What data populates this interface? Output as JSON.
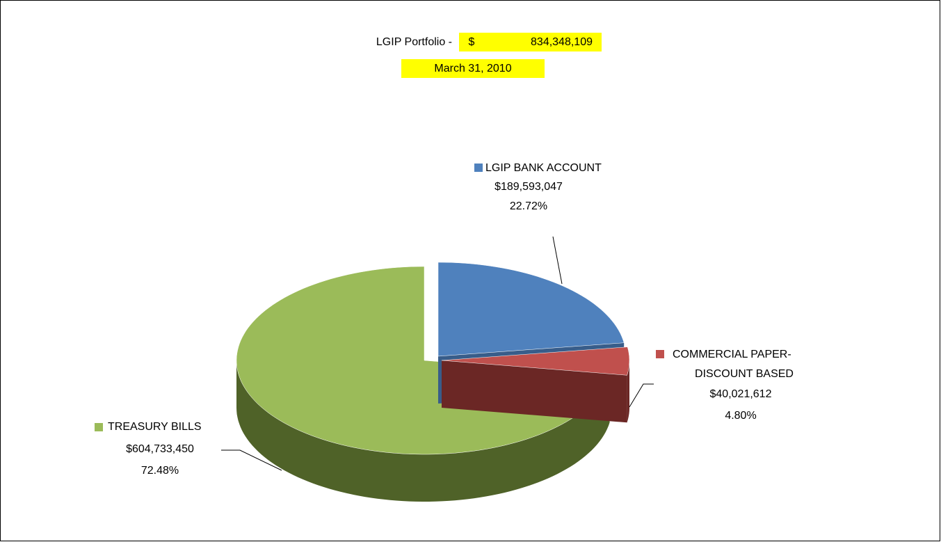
{
  "chart_data": {
    "type": "pie",
    "title": "LGIP Portfolio -",
    "currency_symbol": "$",
    "total": 834348109,
    "total_label": "834,348,109",
    "date": "March 31, 2010",
    "categories": [
      "LGIP BANK ACCOUNT",
      "COMMERCIAL PAPER-DISCOUNT BASED",
      "TREASURY BILLS"
    ],
    "values": [
      22.72,
      4.8,
      72.48
    ],
    "value_labels": [
      "22.72%",
      "4.80%",
      "72.48%"
    ],
    "amounts": [
      189593047,
      40021612,
      604733450
    ],
    "amount_labels": [
      "$189,593,047",
      "$40,021,612",
      "$604,733,450"
    ],
    "colors": [
      "#4f81bd",
      "#c0504d",
      "#9bbb59"
    ],
    "side_colors": [
      "#385d8a",
      "#6b2725",
      "#4f6228"
    ]
  }
}
